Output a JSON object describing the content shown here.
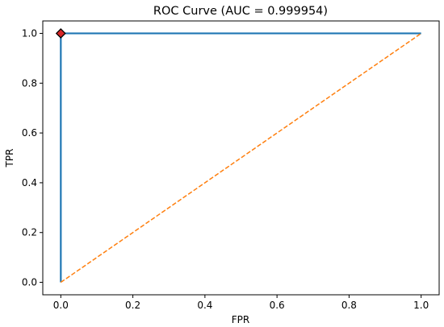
{
  "chart_data": {
    "type": "line",
    "title": "ROC Curve (AUC = 0.999954)",
    "xlabel": "FPR",
    "ylabel": "TPR",
    "xlim": [
      -0.05,
      1.05
    ],
    "ylim": [
      -0.05,
      1.05
    ],
    "xticks": [
      "0.0",
      "0.2",
      "0.4",
      "0.6",
      "0.8",
      "1.0"
    ],
    "yticks": [
      "0.0",
      "0.2",
      "0.4",
      "0.6",
      "0.8",
      "1.0"
    ],
    "grid": false,
    "series": [
      {
        "color": "#1f77b4",
        "style": "solid",
        "x": [
          0.0,
          0.0,
          0.0,
          0.0,
          0.0,
          0.0005,
          1.0
        ],
        "y": [
          0.0,
          0.55,
          0.8,
          0.96,
          0.999,
          1.0,
          1.0
        ]
      },
      {
        "color": "#ff7f0e",
        "style": "dashed",
        "x": [
          0.0,
          1.0
        ],
        "y": [
          0.0,
          1.0
        ]
      }
    ],
    "marker": {
      "x": 0.0,
      "y": 1.0,
      "shape": "diamond",
      "color": "#d62728",
      "edge_color": "#000000"
    }
  }
}
